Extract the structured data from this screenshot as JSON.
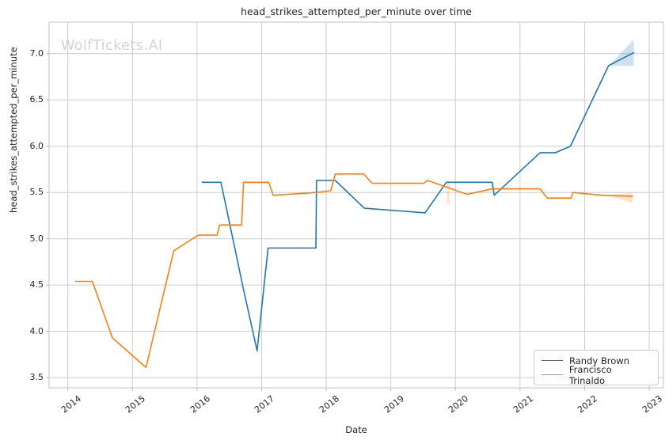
{
  "watermark": "WolfTickets.AI",
  "chart_data": {
    "type": "line",
    "title": "head_strikes_attempted_per_minute over time",
    "xlabel": "Date",
    "ylabel": "head_strikes_attempted_per_minute",
    "x_ticks": [
      2014,
      2015,
      2016,
      2017,
      2018,
      2019,
      2020,
      2021,
      2022,
      2023
    ],
    "y_ticks": [
      3.5,
      4.0,
      4.5,
      5.0,
      5.5,
      6.0,
      6.5,
      7.0
    ],
    "xlim": [
      2013.71,
      2023.22
    ],
    "ylim": [
      3.39,
      7.34
    ],
    "grid": true,
    "grid_color": "#cccccc",
    "legend_position": "lower right",
    "series": [
      {
        "name": "Randy Brown",
        "color": "#1f77b4",
        "x": [
          2016.08,
          2016.37,
          2016.72,
          2016.93,
          2017.1,
          2017.84,
          2017.85,
          2018.14,
          2018.59,
          2019.53,
          2019.86,
          2020.57,
          2020.6,
          2021.31,
          2021.55,
          2021.78,
          2022.37,
          2022.76
        ],
        "y": [
          5.61,
          5.61,
          4.45,
          3.79,
          4.9,
          4.9,
          5.63,
          5.63,
          5.33,
          5.28,
          5.61,
          5.61,
          5.47,
          5.93,
          5.93,
          6.0,
          6.87,
          7.01
        ],
        "bands": [
          {
            "x": [
              2022.37,
              2022.76
            ],
            "lower": [
              6.87,
              6.87
            ],
            "upper": [
              6.87,
              7.15
            ]
          }
        ]
      },
      {
        "name": "Francisco Trinaldo",
        "color": "#ff7f0e",
        "x": [
          2014.12,
          2014.38,
          2014.69,
          2015.21,
          2015.64,
          2016.02,
          2016.31,
          2016.35,
          2016.69,
          2016.72,
          2017.11,
          2017.18,
          2017.85,
          2018.07,
          2018.14,
          2018.58,
          2018.71,
          2019.51,
          2019.57,
          2020.18,
          2020.57,
          2021.31,
          2021.42,
          2021.79,
          2021.82,
          2022.27,
          2022.74
        ],
        "y": [
          4.54,
          4.54,
          3.93,
          3.61,
          4.87,
          5.04,
          5.04,
          5.15,
          5.15,
          5.61,
          5.61,
          5.47,
          5.5,
          5.52,
          5.7,
          5.7,
          5.6,
          5.6,
          5.63,
          5.48,
          5.54,
          5.54,
          5.44,
          5.44,
          5.5,
          5.47,
          5.46
        ],
        "bands": [
          {
            "x": [
              2019.87,
              2019.91
            ],
            "lower": [
              5.37,
              5.37
            ],
            "upper": [
              5.62,
              5.62
            ]
          },
          {
            "x": [
              2022.35,
              2022.74
            ],
            "lower": [
              5.47,
              5.39
            ],
            "upper": [
              5.47,
              5.5
            ]
          }
        ]
      }
    ]
  }
}
